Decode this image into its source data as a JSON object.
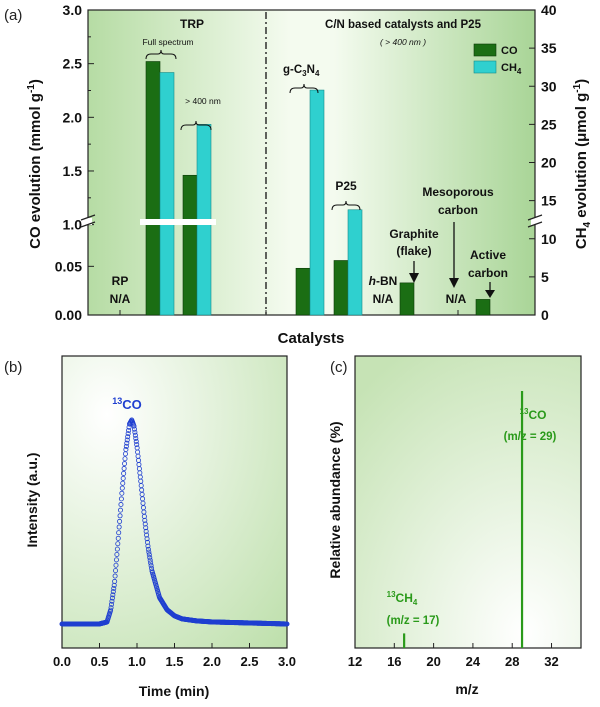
{
  "panels": {
    "a": "(a)",
    "b": "(b)",
    "c": "(c)"
  },
  "colors": {
    "co": "#1b6e14",
    "ch4": "#2fd0cf",
    "trace": "#1f3fd0",
    "ms": "#2a9a1a",
    "bg_light": "#f3faee",
    "bg_dark": "#b7dda6"
  },
  "chart_data": [
    {
      "type": "bar",
      "panel": "(a)",
      "xlabel": "Catalysts",
      "ylabel_left": "CO evolution (mmol g",
      "ylabel_left_sup": "-1",
      "ylabel_left_end": ")",
      "ylabel_right": "CH",
      "ylabel_right_sub": "4",
      "ylabel_right_mid": " evolution (μmol g",
      "ylabel_right_sup": "-1",
      "ylabel_right_end": ")",
      "yaxis_left": {
        "broken": true,
        "lower_range": [
          0,
          0.075
        ],
        "upper_range": [
          0.95,
          3.0
        ],
        "ticks": [
          "0.00",
          "0.05",
          "1.0",
          "1.5",
          "2.0",
          "2.5",
          "3.0"
        ],
        "tick_values": [
          0,
          0.05,
          1.0,
          1.5,
          2.0,
          2.5,
          3.0
        ]
      },
      "yaxis_right": {
        "range": [
          0,
          40
        ],
        "ticks": [
          "0",
          "5",
          "10",
          "15",
          "20",
          "25",
          "30",
          "35",
          "40"
        ]
      },
      "section_titles": {
        "left": "TRP",
        "right": "C/N based catalysts and P25",
        "right_note": "( > 400 nm )"
      },
      "legend": [
        {
          "name": "CO",
          "color": "#1b6e14"
        },
        {
          "name": "CH",
          "sub": "4",
          "color": "#2fd0cf"
        }
      ],
      "legend_position": "top-right",
      "groups": [
        {
          "id": "RP",
          "label": "RP",
          "note": "N/A",
          "co": null,
          "ch4": null
        },
        {
          "id": "TRP-full",
          "bracket": "Full spectrum",
          "co": 2.52,
          "ch4": 31.8
        },
        {
          "id": "TRP-400",
          "bracket": "> 400 nm",
          "co": 1.46,
          "ch4": 25.0
        },
        {
          "id": "g-C3N4",
          "label": "g-C",
          "label_sub1": "3",
          "label_mid": "N",
          "label_sub2": "4",
          "co": 0.048,
          "ch4": 29.5
        },
        {
          "id": "P25",
          "label": "P25",
          "co": 0.056,
          "ch4": 13.8
        },
        {
          "id": "h-BN",
          "label_italic": "h",
          "label": "-BN",
          "note": "N/A",
          "co": null,
          "ch4": null
        },
        {
          "id": "Graphite",
          "label": "Graphite",
          "label2": "(flake)",
          "co": 0.033,
          "ch4": null
        },
        {
          "id": "Mesoporous carbon",
          "label": "Mesoporous",
          "label2": "carbon",
          "note": "N/A",
          "co": null,
          "ch4": null
        },
        {
          "id": "Active carbon",
          "label": "Active",
          "label2": "carbon",
          "co": 0.016,
          "ch4": null
        }
      ]
    },
    {
      "type": "scatter",
      "panel": "(b)",
      "xlabel": "Time (min)",
      "ylabel": "Intensity (a.u.)",
      "xlim": [
        0.0,
        3.0
      ],
      "xticks": [
        "0.0",
        "0.5",
        "1.0",
        "1.5",
        "2.0",
        "2.5",
        "3.0"
      ],
      "peak_label": "CO",
      "peak_label_sup": "13",
      "series": [
        {
          "x": [
            0.0,
            0.5,
            0.6,
            0.65,
            0.7,
            0.75,
            0.8,
            0.85,
            0.9,
            0.93,
            0.96,
            1.0,
            1.05,
            1.1,
            1.15,
            1.2,
            1.3,
            1.4,
            1.5,
            1.6,
            1.8,
            2.0,
            2.5,
            3.0
          ],
          "y": [
            0.0,
            0.0,
            0.01,
            0.07,
            0.2,
            0.42,
            0.65,
            0.85,
            0.98,
            1.0,
            0.97,
            0.87,
            0.7,
            0.52,
            0.37,
            0.26,
            0.13,
            0.07,
            0.04,
            0.025,
            0.015,
            0.01,
            0.005,
            0.0
          ]
        }
      ]
    },
    {
      "type": "bar",
      "panel": "(c)",
      "xlabel": "m/z",
      "ylabel": "Relative abundance (%)",
      "xlim": [
        12,
        35
      ],
      "xticks": [
        "12",
        "16",
        "20",
        "24",
        "28",
        "32"
      ],
      "series": [
        {
          "x": 17,
          "value": 0.05,
          "label": "CH",
          "label_sub": "4",
          "label_sup": "13",
          "sublabel": "(m/z = 17)"
        },
        {
          "x": 29,
          "value": 0.88,
          "label": "CO",
          "label_sup": "13",
          "sublabel": "(m/z = 29)"
        }
      ]
    }
  ]
}
